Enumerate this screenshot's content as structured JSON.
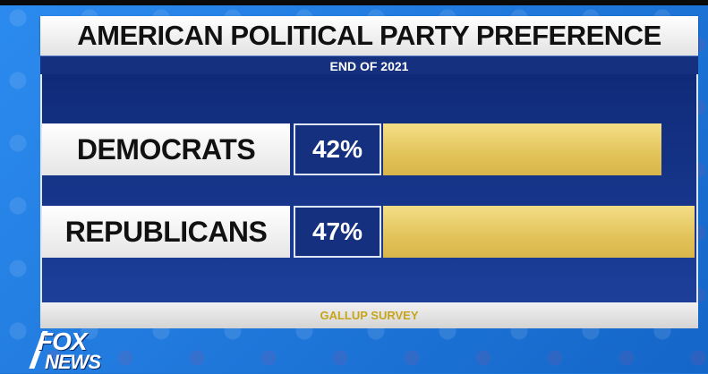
{
  "chart_data": {
    "type": "bar",
    "title": "AMERICAN POLITICAL PARTY PREFERENCE",
    "subtitle": "END OF 2021",
    "source": "GALLUP SURVEY",
    "categories": [
      "DEMOCRATS",
      "REPUBLICANS"
    ],
    "values": [
      42,
      47
    ],
    "value_labels": [
      "42%",
      "47%"
    ],
    "value_unit": "%",
    "max_value": 47,
    "colors": {
      "bar": "#e2c35a",
      "panel": "#14307f",
      "background": "#1b74d6"
    }
  },
  "logo": {
    "line1": "FOX",
    "line2": "NEWS"
  }
}
